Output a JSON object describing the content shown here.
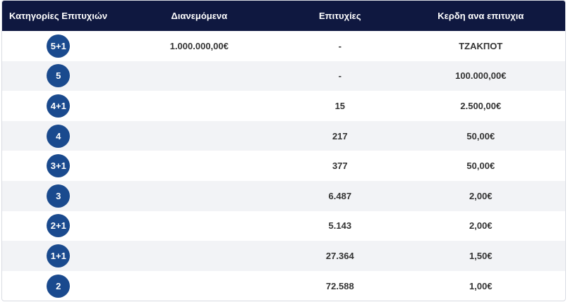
{
  "header": {
    "category": "Κατηγορίες Επιτυχιών",
    "distributed": "Διανεμόμενα",
    "winners": "Επιτυχίες",
    "prize": "Κερδη ανα επιτυχια"
  },
  "colors": {
    "header_bg": "#0f1840",
    "badge_bg": "#1a4a8e",
    "alt_row_bg": "#f2f3f6"
  },
  "rows": [
    {
      "category": "5+1",
      "distributed": "1.000.000,00€",
      "winners": "-",
      "prize": "ΤΖΑΚΠΟΤ"
    },
    {
      "category": "5",
      "distributed": "",
      "winners": "-",
      "prize": "100.000,00€"
    },
    {
      "category": "4+1",
      "distributed": "",
      "winners": "15",
      "prize": "2.500,00€"
    },
    {
      "category": "4",
      "distributed": "",
      "winners": "217",
      "prize": "50,00€"
    },
    {
      "category": "3+1",
      "distributed": "",
      "winners": "377",
      "prize": "50,00€"
    },
    {
      "category": "3",
      "distributed": "",
      "winners": "6.487",
      "prize": "2,00€"
    },
    {
      "category": "2+1",
      "distributed": "",
      "winners": "5.143",
      "prize": "2,00€"
    },
    {
      "category": "1+1",
      "distributed": "",
      "winners": "27.364",
      "prize": "1,50€"
    },
    {
      "category": "2",
      "distributed": "",
      "winners": "72.588",
      "prize": "1,00€"
    }
  ]
}
